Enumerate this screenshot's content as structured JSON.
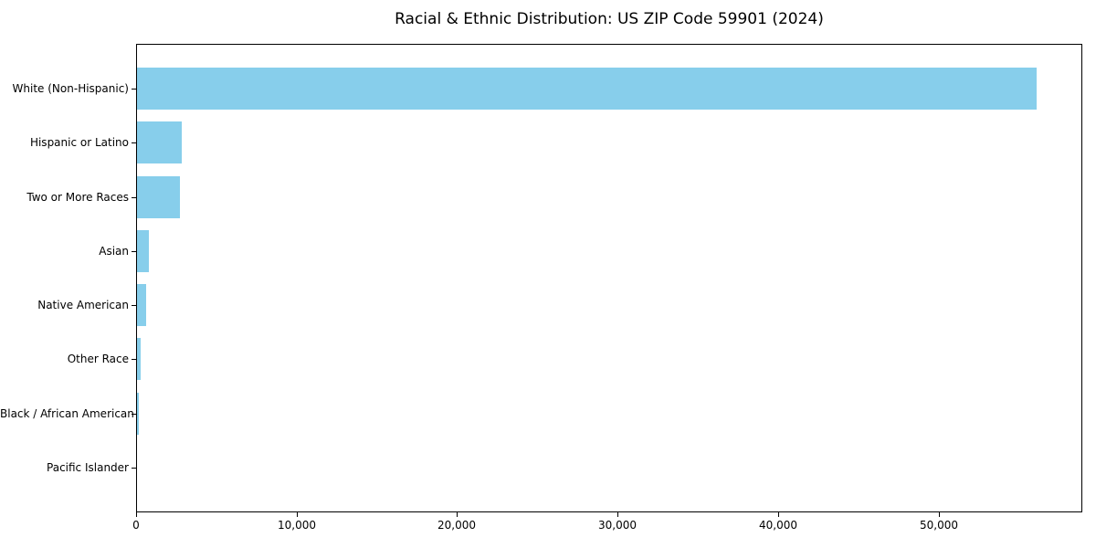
{
  "title": "Racial & Ethnic Distribution: US ZIP Code 59901 (2024)",
  "chart_data": {
    "type": "bar",
    "orientation": "horizontal",
    "title": "Racial & Ethnic Distribution: US ZIP Code 59901 (2024)",
    "categories": [
      "White (Non-Hispanic)",
      "Hispanic or Latino",
      "Two or More Races",
      "Asian",
      "Native American",
      "Other Race",
      "Black / African American",
      "Pacific Islander"
    ],
    "values": [
      56100,
      2800,
      2700,
      730,
      570,
      210,
      120,
      20
    ],
    "xlabel": "",
    "ylabel": "",
    "xlim": [
      0,
      58900
    ],
    "xticks": [
      0,
      10000,
      20000,
      30000,
      40000,
      50000
    ],
    "xtick_labels": [
      "0",
      "10,000",
      "20,000",
      "30,000",
      "40,000",
      "50,000"
    ],
    "bar_color": "#87CEEB",
    "grid": false,
    "legend_position": "none"
  }
}
